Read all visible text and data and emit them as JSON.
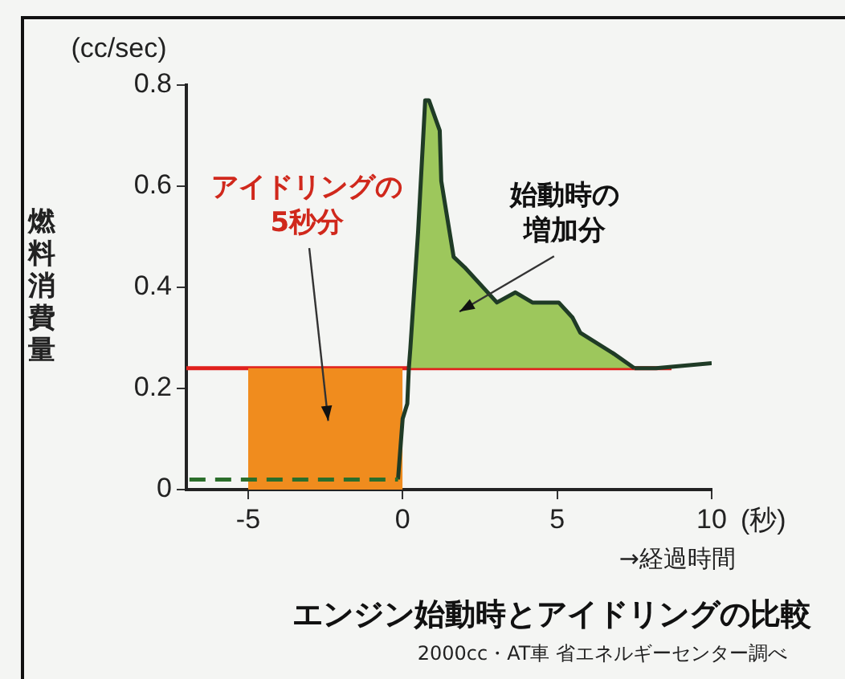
{
  "chart_data": {
    "type": "line",
    "title": "エンジン始動時とアイドリングの比較",
    "subtitle": "2000cc・AT車 省エネルギーセンター調べ",
    "ylabel": "燃料消費量",
    "xlabel": "→経過時間",
    "xlim": [
      -7,
      10
    ],
    "xticks": [
      -5,
      0,
      5,
      10
    ],
    "ylim": [
      0,
      0.8
    ],
    "yticks": [
      0,
      0.2,
      0.4,
      0.6,
      0.8
    ],
    "grid": false,
    "legend": false,
    "marker": "none",
    "series": [
      {
        "type": "area",
        "color": "#f08c1e",
        "x": [
          -5,
          0
        ],
        "values": [
          0.24,
          0.24
        ]
      },
      {
        "color": "#2b6e2b",
        "line_style": "dashed",
        "x": [
          -6.9,
          -0.15
        ],
        "values": [
          0.02,
          0.02
        ]
      },
      {
        "color": "#1f3b26",
        "x": [
          -0.15,
          0.0,
          0.15,
          0.2
        ],
        "values": [
          0.02,
          0.14,
          0.17,
          0.24
        ]
      },
      {
        "type": "area",
        "color": "#9dc75c",
        "x": [
          0.2,
          0.25,
          0.5,
          0.73,
          0.85,
          1.2,
          1.25,
          1.65,
          2.0,
          3.05,
          3.65,
          4.2,
          5.05,
          5.5,
          5.75,
          6.8,
          7.5
        ],
        "values": [
          0.24,
          0.28,
          0.51,
          0.77,
          0.77,
          0.71,
          0.61,
          0.46,
          0.44,
          0.37,
          0.39,
          0.37,
          0.37,
          0.34,
          0.31,
          0.27,
          0.24
        ]
      },
      {
        "color": "#1f3b26",
        "x": [
          7.5,
          8.2,
          10
        ],
        "values": [
          0.24,
          0.24,
          0.25
        ]
      }
    ],
    "ref_lines": [
      {
        "axis": "y",
        "value": 0.24,
        "color": "#e0201c"
      }
    ],
    "annotations": [
      "(cc/sec)",
      "(秒)",
      "アイドリングの5秒分",
      "始動時の増加分"
    ]
  }
}
